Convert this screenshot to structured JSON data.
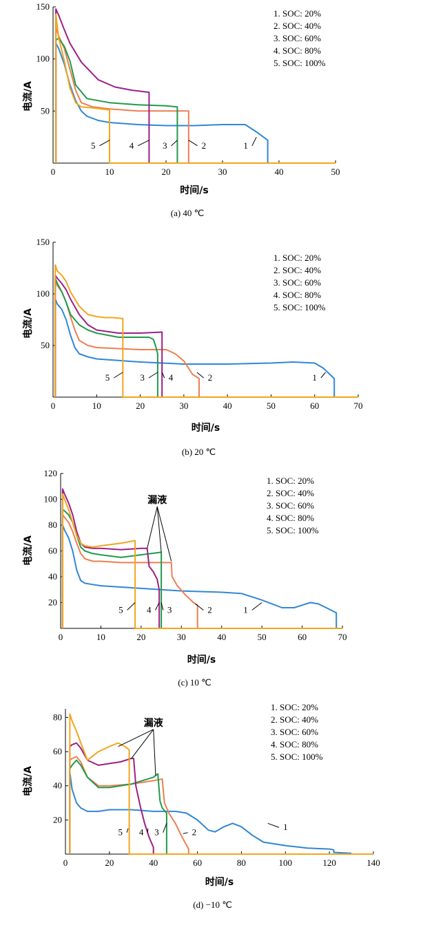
{
  "colors": {
    "1": "#2f86d6",
    "2": "#ee7d52",
    "3": "#1f9a4a",
    "4": "#9b1f86",
    "5": "#f2a51c"
  },
  "chart_data": [
    {
      "type": "line",
      "caption": "(a) 40 ℃",
      "xlabel": "时间/s",
      "ylabel": "电流/A",
      "xlim": [
        0,
        50
      ],
      "ylim": [
        0,
        150
      ],
      "xticks": [
        0,
        10,
        20,
        30,
        40,
        50
      ],
      "yticks": [
        50,
        100,
        150
      ],
      "legend": [
        "1. SOC: 20%",
        "2. SOC: 40%",
        "3. SOC: 60%",
        "4. SOC: 80%",
        "5. SOC: 100%"
      ],
      "annotations": [],
      "series": [
        {
          "id": "1",
          "x": [
            0.5,
            0.5,
            1,
            2,
            3,
            4,
            5,
            6,
            8,
            10,
            15,
            20,
            25,
            30,
            34,
            36,
            38,
            38,
            50
          ],
          "y": [
            0,
            115,
            110,
            95,
            75,
            60,
            50,
            45,
            41,
            39,
            37,
            36,
            36,
            37,
            37,
            30,
            22,
            0,
            0
          ],
          "label_text": "1",
          "label_at": [
            34.5,
            14
          ],
          "leader_to": [
            36.0,
            25
          ]
        },
        {
          "id": "2",
          "x": [
            0.5,
            0.5,
            1,
            2,
            3,
            4,
            5,
            7,
            10,
            15,
            20,
            24,
            24,
            50
          ],
          "y": [
            0,
            130,
            122,
            110,
            90,
            70,
            58,
            54,
            52,
            50,
            50,
            50,
            0,
            0
          ],
          "label_text": "2",
          "label_at": [
            26.3,
            14
          ],
          "leader_to": [
            24.0,
            22
          ]
        },
        {
          "id": "3",
          "x": [
            0.5,
            0.5,
            1,
            2,
            3,
            4,
            6,
            10,
            15,
            20,
            22,
            22,
            50
          ],
          "y": [
            0,
            118,
            120,
            112,
            98,
            75,
            62,
            58,
            56,
            55,
            54,
            0,
            0
          ],
          "label_text": "3",
          "label_at": [
            20.2,
            14
          ],
          "leader_to": [
            22.0,
            22
          ]
        },
        {
          "id": "4",
          "x": [
            0.5,
            0.5,
            1,
            2,
            3,
            5,
            8,
            11,
            14,
            17,
            17,
            50
          ],
          "y": [
            0,
            148,
            142,
            128,
            115,
            97,
            80,
            73,
            70,
            68,
            0,
            0
          ],
          "label_text": "4",
          "label_at": [
            14.3,
            14
          ],
          "leader_to": [
            17.0,
            22
          ]
        },
        {
          "id": "5",
          "x": [
            0.5,
            0.5,
            1,
            2,
            3,
            4,
            5,
            7,
            10,
            10,
            50
          ],
          "y": [
            0,
            143,
            120,
            98,
            72,
            58,
            54,
            53,
            51,
            0,
            0
          ],
          "label_text": "5",
          "label_at": [
            7.5,
            14
          ],
          "leader_to": [
            10.0,
            22
          ]
        }
      ]
    },
    {
      "type": "line",
      "caption": "(b) 20 ℃",
      "xlabel": "时间/s",
      "ylabel": "电流/A",
      "xlim": [
        0,
        70
      ],
      "ylim": [
        0,
        150
      ],
      "xticks": [
        0,
        10,
        20,
        30,
        40,
        50,
        60,
        70
      ],
      "yticks": [
        50,
        100,
        150
      ],
      "legend": [
        "1. SOC: 20%",
        "2. SOC: 40%",
        "3. SOC: 60%",
        "4. SOC: 80%",
        "5. SOC: 100%"
      ],
      "annotations": [],
      "series": [
        {
          "id": "1",
          "x": [
            0.5,
            0.5,
            1,
            2,
            3,
            4,
            5,
            6,
            8,
            10,
            20,
            30,
            40,
            50,
            55,
            60,
            62,
            64.5,
            64.5,
            70
          ],
          "y": [
            0,
            95,
            90,
            85,
            75,
            60,
            48,
            42,
            39,
            37,
            34,
            32,
            32,
            33,
            34,
            33,
            28,
            18,
            0,
            0
          ],
          "label_text": "1",
          "label_at": [
            60.5,
            16
          ],
          "leader_to": [
            62.5,
            24
          ]
        },
        {
          "id": "2",
          "x": [
            0.5,
            0.5,
            1,
            2,
            3,
            4,
            5,
            6,
            8,
            10,
            15,
            20,
            26,
            28,
            30,
            32,
            33.5,
            33.5,
            70
          ],
          "y": [
            0,
            112,
            108,
            102,
            92,
            78,
            65,
            55,
            50,
            48,
            47,
            46,
            46,
            42,
            35,
            22,
            18,
            0,
            0
          ],
          "label_text": "2",
          "label_at": [
            35.5,
            16
          ],
          "leader_to": [
            33.0,
            24
          ]
        },
        {
          "id": "3",
          "x": [
            0.5,
            0.5,
            1,
            2,
            3,
            4,
            6,
            8,
            10,
            15,
            20,
            22,
            23,
            23.5,
            24,
            24,
            70
          ],
          "y": [
            0,
            115,
            110,
            102,
            92,
            80,
            70,
            65,
            62,
            58,
            58,
            58,
            56,
            50,
            42,
            0,
            0
          ],
          "label_text": "3",
          "label_at": [
            21.0,
            16
          ],
          "leader_to": [
            24.0,
            24
          ]
        },
        {
          "id": "4",
          "x": [
            0.5,
            0.5,
            1,
            2,
            3,
            4,
            6,
            8,
            10,
            15,
            20,
            25,
            25,
            70
          ],
          "y": [
            0,
            118,
            115,
            110,
            104,
            95,
            80,
            70,
            65,
            62,
            62,
            63,
            0,
            0
          ],
          "label_text": "4",
          "label_at": [
            26.5,
            16
          ],
          "leader_to": [
            25.0,
            24
          ]
        },
        {
          "id": "5",
          "x": [
            0.5,
            0.5,
            1,
            2,
            3,
            4,
            6,
            8,
            10,
            12,
            14,
            16,
            16,
            70
          ],
          "y": [
            0,
            128,
            122,
            118,
            112,
            102,
            88,
            80,
            78,
            77,
            77,
            76,
            0,
            0
          ],
          "label_text": "5",
          "label_at": [
            13.0,
            16
          ],
          "leader_to": [
            16.0,
            24
          ]
        }
      ]
    },
    {
      "type": "line",
      "caption": "(c) 10 ℃",
      "xlabel": "时间/s",
      "ylabel": "电流/A",
      "xlim": [
        0,
        70
      ],
      "ylim": [
        0,
        120
      ],
      "xticks": [
        0,
        10,
        20,
        30,
        40,
        50,
        60,
        70
      ],
      "yticks": [
        20,
        40,
        60,
        80,
        100,
        120
      ],
      "legend": [
        "1. SOC: 20%",
        "2. SOC: 40%",
        "3. SOC: 60%",
        "4. SOC: 80%",
        "5. SOC: 100%"
      ],
      "annotations": [
        {
          "text": "漏液",
          "at": [
            24.0,
            97
          ],
          "targets": [
            [
              21.5,
              62
            ],
            [
              25.0,
              59
            ],
            [
              27.5,
              52
            ]
          ]
        }
      ],
      "series": [
        {
          "id": "1",
          "x": [
            0.5,
            0.5,
            1,
            2,
            3,
            4,
            5,
            6,
            8,
            10,
            20,
            30,
            40,
            45,
            50,
            55,
            58,
            60,
            62,
            64,
            66,
            68.5,
            68.5,
            70
          ],
          "y": [
            0,
            80,
            76,
            70,
            60,
            45,
            37,
            35,
            34,
            33,
            31,
            29,
            28,
            27,
            22,
            16,
            16,
            18,
            20,
            19,
            16,
            12,
            0,
            0
          ],
          "label_text": "1",
          "label_at": [
            46.5,
            12
          ],
          "leader_to": [
            50.0,
            20
          ]
        },
        {
          "id": "2",
          "x": [
            0.5,
            0.5,
            1,
            2,
            3,
            4,
            5,
            6,
            8,
            10,
            15,
            20,
            25,
            27.5,
            27.7,
            29,
            31,
            33,
            34,
            34,
            70
          ],
          "y": [
            0,
            88,
            86,
            82,
            75,
            66,
            58,
            54,
            52,
            52,
            51,
            51,
            51,
            51,
            40,
            33,
            26,
            20,
            18,
            0,
            0
          ],
          "label_text": "2",
          "label_at": [
            36.5,
            12
          ],
          "leader_to": [
            33.5,
            19
          ]
        },
        {
          "id": "3",
          "x": [
            0.5,
            0.5,
            1,
            2,
            3,
            4,
            5,
            6,
            8,
            10,
            15,
            20,
            25,
            25,
            70
          ],
          "y": [
            0,
            92,
            91,
            88,
            82,
            72,
            63,
            60,
            58,
            57,
            55,
            57,
            59,
            0,
            0
          ],
          "label_text": "3",
          "label_at": [
            26.5,
            12
          ],
          "leader_to": [
            25.0,
            20
          ]
        },
        {
          "id": "4",
          "x": [
            0.5,
            0.5,
            1,
            2,
            3,
            4,
            5,
            6,
            8,
            10,
            15,
            20,
            21.5,
            22,
            23,
            24,
            24.5,
            24.5,
            70
          ],
          "y": [
            0,
            108,
            104,
            97,
            88,
            75,
            66,
            63,
            62,
            62,
            61,
            62,
            62,
            48,
            44,
            38,
            30,
            0,
            0
          ],
          "label_text": "4",
          "label_at": [
            22.5,
            12
          ],
          "leader_to": [
            24.5,
            20
          ]
        },
        {
          "id": "5",
          "x": [
            0.5,
            0.5,
            1,
            2,
            3,
            4,
            5,
            6,
            8,
            10,
            15,
            18.5,
            18.5,
            70
          ],
          "y": [
            0,
            104,
            100,
            92,
            82,
            72,
            66,
            64,
            63,
            64,
            66,
            68,
            0,
            0
          ],
          "label_text": "5",
          "label_at": [
            15.5,
            12
          ],
          "leader_to": [
            18.5,
            20
          ]
        }
      ]
    },
    {
      "type": "line",
      "caption": "(d) −10 ℃",
      "xlabel": "时间/s",
      "ylabel": "电流/A",
      "xlim": [
        0,
        140
      ],
      "ylim": [
        0,
        85
      ],
      "xticks": [
        0,
        20,
        40,
        60,
        80,
        100,
        120,
        140
      ],
      "yticks": [
        20,
        40,
        60,
        80
      ],
      "legend": [
        "1. SOC: 20%",
        "2. SOC: 40%",
        "3. SOC: 60%",
        "4. SOC: 80%",
        "5. SOC: 100%"
      ],
      "annotations": [
        {
          "text": "漏液",
          "at": [
            40.0,
            75
          ],
          "targets": [
            [
              24.0,
              63
            ],
            [
              30.0,
              56
            ],
            [
              41.0,
              46
            ]
          ]
        }
      ],
      "series": [
        {
          "id": "1",
          "x": [
            2,
            2,
            3,
            5,
            7,
            10,
            15,
            20,
            30,
            40,
            50,
            55,
            60,
            65,
            68,
            72,
            76,
            80,
            85,
            90,
            100,
            110,
            120,
            122,
            122,
            130
          ],
          "y": [
            0,
            48,
            38,
            30,
            27,
            25,
            25,
            26,
            26,
            25,
            25,
            24,
            20,
            14,
            13,
            16,
            18,
            16,
            11,
            7,
            5,
            3.5,
            3,
            2.5,
            1,
            0.5
          ],
          "label_text": "1",
          "label_at": [
            99,
            14
          ],
          "leader_to": [
            92,
            18
          ]
        },
        {
          "id": "2",
          "x": [
            2,
            2,
            3,
            5,
            7,
            10,
            15,
            20,
            30,
            40,
            44,
            45,
            47,
            50,
            53,
            56,
            56,
            140
          ],
          "y": [
            0,
            55,
            56,
            57,
            54,
            45,
            40,
            40,
            41,
            43,
            44,
            30,
            24,
            18,
            10,
            3,
            0,
            0
          ],
          "label_text": "2",
          "label_at": [
            57.5,
            11
          ],
          "leader_to": [
            53.5,
            12
          ]
        },
        {
          "id": "3",
          "x": [
            2,
            2,
            3,
            5,
            7,
            10,
            15,
            20,
            30,
            40,
            42,
            43,
            44,
            46,
            46,
            140
          ],
          "y": [
            0,
            50,
            52,
            55,
            52,
            45,
            39,
            39,
            41,
            45,
            47,
            31,
            27,
            24,
            0,
            0
          ],
          "label_text": "3",
          "label_at": [
            42.5,
            11
          ],
          "leader_to": [
            46.0,
            18
          ]
        },
        {
          "id": "4",
          "x": [
            2,
            2,
            3,
            5,
            7,
            10,
            15,
            20,
            25,
            30,
            31,
            32,
            34,
            36,
            38,
            40,
            40,
            140
          ],
          "y": [
            0,
            63,
            64,
            65,
            62,
            55,
            52,
            53,
            54,
            56,
            56,
            40,
            28,
            18,
            10,
            4,
            0,
            0
          ],
          "label_text": "4",
          "label_at": [
            35.5,
            11
          ],
          "leader_to": [
            37.5,
            15
          ]
        },
        {
          "id": "5",
          "x": [
            2,
            2,
            3,
            5,
            7,
            10,
            15,
            20,
            24,
            27,
            29,
            29,
            140
          ],
          "y": [
            0,
            82,
            78,
            72,
            65,
            55,
            60,
            63,
            65,
            63,
            61,
            0,
            0
          ],
          "label_text": "5",
          "label_at": [
            26.0,
            11
          ],
          "leader_to": [
            28.5,
            15
          ]
        }
      ]
    }
  ]
}
